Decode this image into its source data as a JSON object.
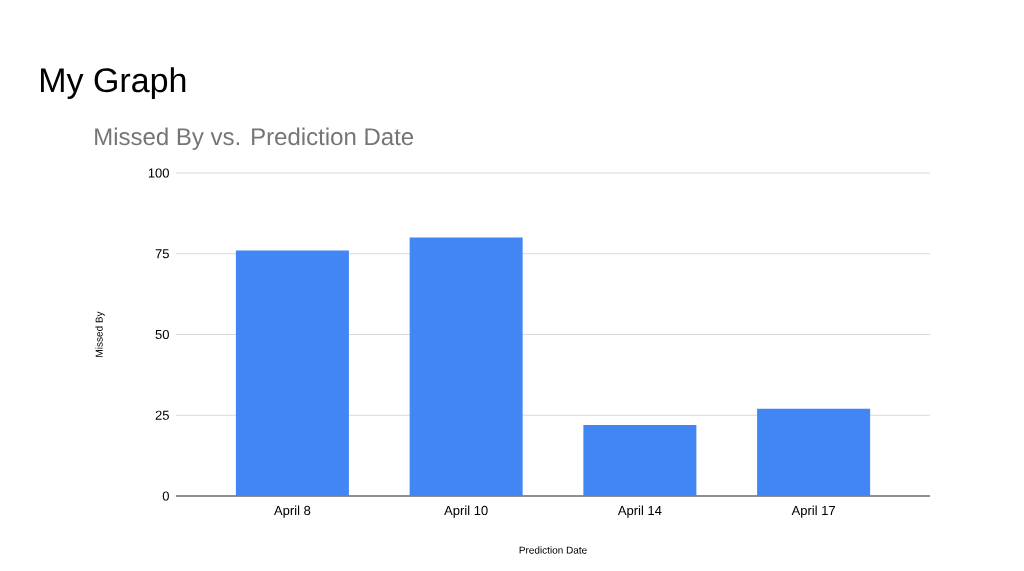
{
  "chart_data": {
    "type": "bar",
    "title": "My Graph",
    "subtitle": "Missed By vs. Prediction Date",
    "xlabel": "Prediction Date",
    "ylabel": "Missed By",
    "categories": [
      "April 8",
      "April 10",
      "April 14",
      "April 17"
    ],
    "values": [
      76,
      80,
      22,
      27
    ],
    "color": "#4285f4",
    "ylim": [
      0,
      100
    ],
    "yticks": [
      0,
      25,
      50,
      75,
      100
    ],
    "grid": "y"
  }
}
